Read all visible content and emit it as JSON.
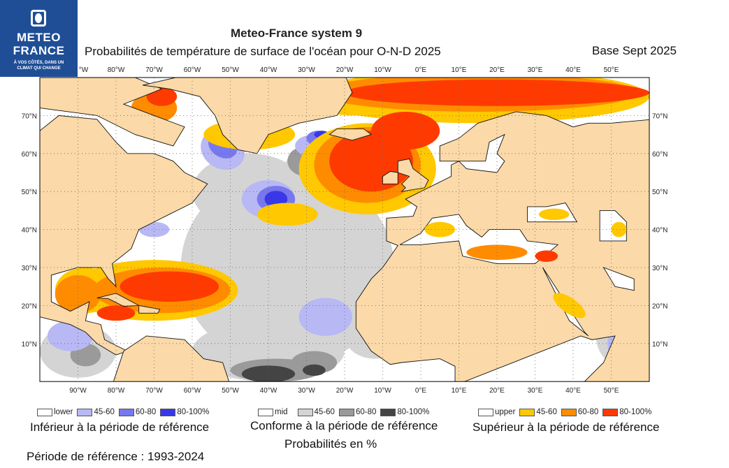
{
  "logo": {
    "line1": "METEO",
    "line2": "FRANCE",
    "tagline1": "À VOS CÔTÉS, DANS UN",
    "tagline2": "CLIMAT QUI CHANGE"
  },
  "header": {
    "title": "Meteo-France system 9",
    "subtitle": "Probabilités de température de surface de l'océan pour O-N-D 2025",
    "base": "Base Sept 2025"
  },
  "map": {
    "lon_labels": [
      "90°W",
      "80°W",
      "70°W",
      "60°W",
      "50°W",
      "40°W",
      "30°W",
      "20°W",
      "10°W",
      "0°E",
      "10°E",
      "20°E",
      "30°E",
      "40°E",
      "50°E"
    ],
    "top_lon_labels": [
      "°W",
      "80°W",
      "70°W",
      "60°W",
      "50°W",
      "40°W",
      "30°W",
      "20°W",
      "10°W",
      "0°E",
      "10°E",
      "20°E",
      "30°E",
      "40°E",
      "50°E"
    ],
    "lat_left": [
      "70°N",
      "60°N",
      "50°N",
      "40°N",
      "30°N",
      "20°N",
      "10°N"
    ],
    "lat_right": [
      "70°N",
      "60°N",
      "50°N",
      "40°N",
      "30°N",
      "20°N",
      "10°N"
    ],
    "colors": {
      "land": "#fbd9a8",
      "lower1": "#b8b8f5",
      "lower2": "#7878ee",
      "lower3": "#3838e8",
      "mid1": "#d4d4d4",
      "mid2": "#9a9a9a",
      "mid3": "#444444",
      "upper1": "#ffc800",
      "upper2": "#ff8c00",
      "upper3": "#ff3a00"
    }
  },
  "legend": {
    "lower": {
      "items": [
        "lower",
        "45-60",
        "60-80",
        "80-100%"
      ],
      "caption": "Inférieur à la période de référence"
    },
    "mid": {
      "items": [
        "mid",
        "45-60",
        "60-80",
        "80-100%"
      ],
      "caption": "Conforme à la période de référence",
      "note": "Probabilités en %"
    },
    "upper": {
      "items": [
        "upper",
        "45-60",
        "60-80",
        "80-100%"
      ],
      "caption": "Supérieur à la période de référence"
    }
  },
  "footer": {
    "reference": "Période de référence : 1993-2024"
  }
}
